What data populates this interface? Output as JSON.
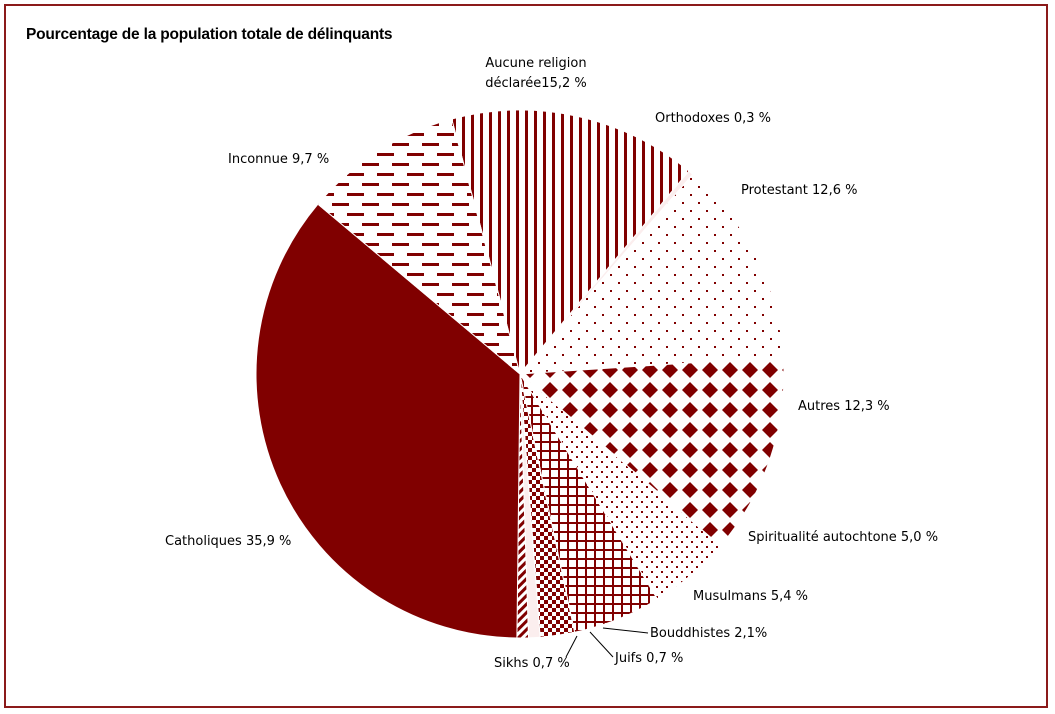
{
  "chart_data": {
    "type": "pie",
    "title": "Pourcentage de la population totale de délinquants",
    "unit": "%",
    "slices": [
      {
        "label": "Aucune religion déclarée",
        "value": 15.2,
        "text": "Aucune religion déclarée15,2 %",
        "lines": [
          "Aucune religion",
          "déclarée15,2 %"
        ],
        "pattern": "vertical-lines"
      },
      {
        "label": "Orthodoxes",
        "value": 0.3,
        "text": "Orthodoxes 0,3 %",
        "lines": [
          "Orthodoxes 0,3 %"
        ],
        "pattern": "solid-light"
      },
      {
        "label": "Protestant",
        "value": 12.6,
        "text": "Protestant 12,6 %",
        "lines": [
          "Protestant 12,6 %"
        ],
        "pattern": "sparse-dots"
      },
      {
        "label": "Autres",
        "value": 12.3,
        "text": "Autres 12,3 %",
        "lines": [
          "Autres 12,3 %"
        ],
        "pattern": "diamonds"
      },
      {
        "label": "Spiritualité autochtone",
        "value": 5.0,
        "text": "Spiritualité autochtone 5,0 %",
        "lines": [
          "Spiritualité autochtone 5,0 %"
        ],
        "pattern": "fine-dots"
      },
      {
        "label": "Musulmans",
        "value": 5.4,
        "text": "Musulmans 5,4 %",
        "lines": [
          "Musulmans 5,4 %"
        ],
        "pattern": "grid"
      },
      {
        "label": "Bouddhistes",
        "value": 2.1,
        "text": "Bouddhistes 2,1%",
        "lines": [
          "Bouddhistes 2,1%"
        ],
        "pattern": "checker"
      },
      {
        "label": "Juifs",
        "value": 0.7,
        "text": "Juifs 0,7 %",
        "lines": [
          "Juifs 0,7 %"
        ],
        "pattern": "solid-light"
      },
      {
        "label": "Sikhs",
        "value": 0.7,
        "text": "Sikhs 0,7 %",
        "lines": [
          "Sikhs 0,7 %"
        ],
        "pattern": "diagonal"
      },
      {
        "label": "Catholiques",
        "value": 35.9,
        "text": "Catholiques 35,9 %",
        "lines": [
          "Catholiques 35,9 %"
        ],
        "pattern": "solid"
      },
      {
        "label": "Inconnue",
        "value": 9.7,
        "text": "Inconnue 9,7 %",
        "lines": [
          "Inconnue 9,7 %"
        ],
        "pattern": "dashes"
      }
    ],
    "legend": "none",
    "colors": {
      "primary": "#800000",
      "border": "#8b1a1a",
      "background": "#ffffff"
    }
  }
}
